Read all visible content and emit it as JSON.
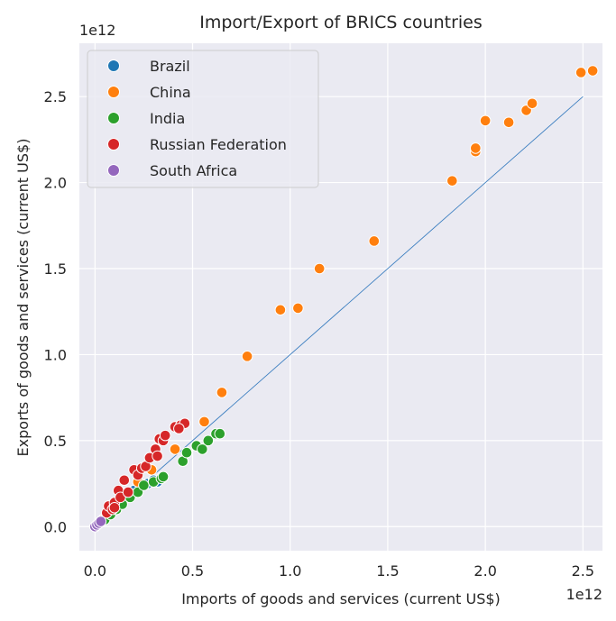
{
  "chart_data": {
    "type": "scatter",
    "title": "Import/Export of BRICS countries",
    "xlabel": "Imports of goods and services (current US$)",
    "ylabel": "Exports of goods and services (current US$)",
    "x_offset_text": "1e12",
    "y_offset_text": "1e12",
    "x_ticks": [
      0.0,
      0.5,
      1.0,
      1.5,
      2.0,
      2.5
    ],
    "y_ticks": [
      0.0,
      0.5,
      1.0,
      1.5,
      2.0,
      2.5
    ],
    "x_tick_labels": [
      "0.0",
      "0.5",
      "1.0",
      "1.5",
      "2.0",
      "2.5"
    ],
    "y_tick_labels": [
      "0.0",
      "0.5",
      "1.0",
      "1.5",
      "2.0",
      "2.5"
    ],
    "xlim": [
      -0.08,
      2.6
    ],
    "ylim": [
      -0.14,
      2.81
    ],
    "grid": true,
    "legend_placement": "top-left",
    "reference_line": {
      "x": [
        0.0,
        2.5
      ],
      "y": [
        0.0,
        2.5
      ],
      "color": "#3b7ec0"
    },
    "series": [
      {
        "name": "Brazil",
        "color": "#1f77b4",
        "points": [
          [
            0.02,
            0.02
          ],
          [
            0.03,
            0.03
          ],
          [
            0.05,
            0.05
          ],
          [
            0.07,
            0.07
          ],
          [
            0.1,
            0.1
          ],
          [
            0.13,
            0.14
          ],
          [
            0.17,
            0.18
          ],
          [
            0.2,
            0.21
          ],
          [
            0.24,
            0.24
          ],
          [
            0.27,
            0.25
          ],
          [
            0.3,
            0.27
          ],
          [
            0.32,
            0.26
          ]
        ]
      },
      {
        "name": "China",
        "color": "#ff7f0e",
        "points": [
          [
            0.04,
            0.04
          ],
          [
            0.06,
            0.06
          ],
          [
            0.08,
            0.08
          ],
          [
            0.1,
            0.11
          ],
          [
            0.13,
            0.15
          ],
          [
            0.17,
            0.2
          ],
          [
            0.22,
            0.26
          ],
          [
            0.29,
            0.33
          ],
          [
            0.41,
            0.45
          ],
          [
            0.56,
            0.61
          ],
          [
            0.65,
            0.78
          ],
          [
            0.78,
            0.99
          ],
          [
            0.95,
            1.26
          ],
          [
            1.04,
            1.27
          ],
          [
            1.15,
            1.5
          ],
          [
            1.43,
            1.66
          ],
          [
            1.83,
            2.01
          ],
          [
            1.95,
            2.18
          ],
          [
            1.95,
            2.2
          ],
          [
            2.0,
            2.36
          ],
          [
            2.12,
            2.35
          ],
          [
            2.21,
            2.42
          ],
          [
            2.24,
            2.46
          ],
          [
            2.49,
            2.64
          ],
          [
            2.55,
            2.65
          ]
        ]
      },
      {
        "name": "India",
        "color": "#2ca02c",
        "points": [
          [
            0.05,
            0.04
          ],
          [
            0.08,
            0.07
          ],
          [
            0.11,
            0.1
          ],
          [
            0.14,
            0.13
          ],
          [
            0.18,
            0.17
          ],
          [
            0.22,
            0.2
          ],
          [
            0.25,
            0.24
          ],
          [
            0.3,
            0.26
          ],
          [
            0.34,
            0.28
          ],
          [
            0.35,
            0.29
          ],
          [
            0.45,
            0.38
          ],
          [
            0.47,
            0.43
          ],
          [
            0.52,
            0.47
          ],
          [
            0.55,
            0.45
          ],
          [
            0.58,
            0.5
          ],
          [
            0.62,
            0.54
          ],
          [
            0.64,
            0.54
          ]
        ]
      },
      {
        "name": "Russian Federation",
        "color": "#d62728",
        "points": [
          [
            0.06,
            0.08
          ],
          [
            0.07,
            0.12
          ],
          [
            0.09,
            0.1
          ],
          [
            0.1,
            0.14
          ],
          [
            0.1,
            0.11
          ],
          [
            0.12,
            0.21
          ],
          [
            0.13,
            0.17
          ],
          [
            0.15,
            0.27
          ],
          [
            0.17,
            0.2
          ],
          [
            0.2,
            0.33
          ],
          [
            0.22,
            0.3
          ],
          [
            0.24,
            0.34
          ],
          [
            0.26,
            0.35
          ],
          [
            0.28,
            0.4
          ],
          [
            0.31,
            0.45
          ],
          [
            0.32,
            0.41
          ],
          [
            0.33,
            0.51
          ],
          [
            0.35,
            0.5
          ],
          [
            0.36,
            0.53
          ],
          [
            0.41,
            0.58
          ],
          [
            0.44,
            0.59
          ],
          [
            0.46,
            0.6
          ],
          [
            0.43,
            0.57
          ]
        ]
      },
      {
        "name": "South Africa",
        "color": "#9467bd",
        "points": [
          [
            0.0,
            0.0
          ],
          [
            0.01,
            0.01
          ],
          [
            0.02,
            0.02
          ],
          [
            0.03,
            0.03
          ]
        ]
      }
    ]
  }
}
